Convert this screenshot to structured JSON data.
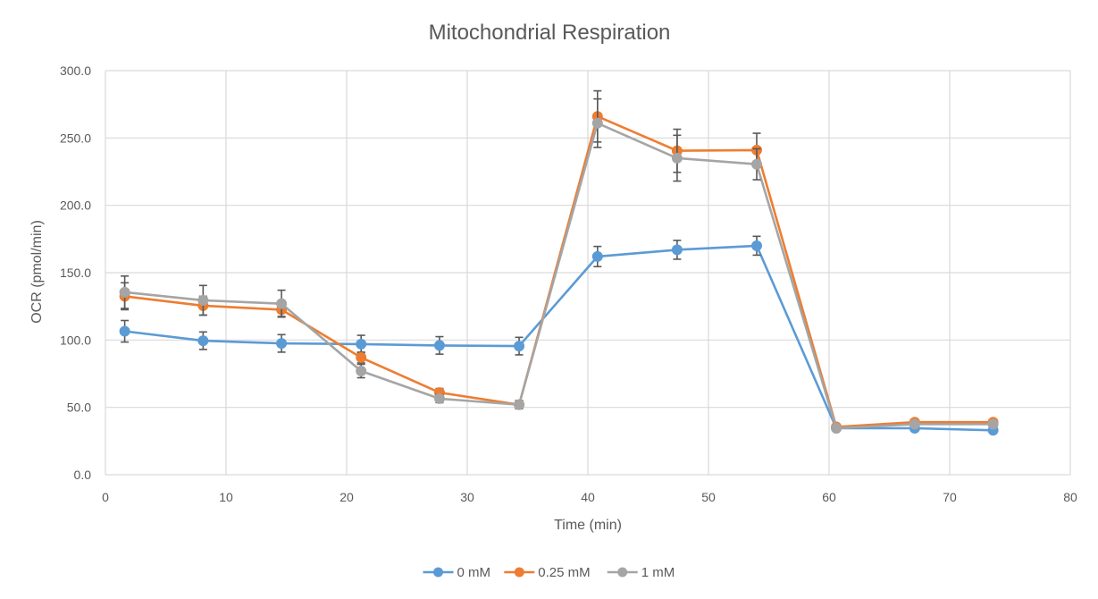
{
  "chart_data": {
    "type": "line",
    "title": "Mitochondrial Respiration",
    "xlabel": "Time (min)",
    "ylabel": "OCR (pmol/min)",
    "xlim": [
      0,
      80
    ],
    "ylim": [
      0,
      300
    ],
    "x_ticks": [
      "0",
      "10",
      "20",
      "30",
      "40",
      "50",
      "60",
      "70",
      "80"
    ],
    "y_ticks": [
      "0.0",
      "50.0",
      "100.0",
      "150.0",
      "200.0",
      "250.0",
      "300.0"
    ],
    "grid": true,
    "legend_position": "bottom",
    "x": [
      1.6,
      8.1,
      14.6,
      21.2,
      27.7,
      34.3,
      40.8,
      47.4,
      54.0,
      60.6,
      67.1,
      73.6
    ],
    "series": [
      {
        "name": "0 mM",
        "color": "#5B9BD5",
        "values": [
          106.5,
          99.5,
          97.5,
          97,
          96,
          95.5,
          162,
          167,
          170,
          34.5,
          34.5,
          33
        ],
        "errors": [
          8,
          6.5,
          6.5,
          6.5,
          6.5,
          6.5,
          7.5,
          7,
          7,
          1.5,
          1.5,
          1.5
        ]
      },
      {
        "name": "0.25 mM",
        "color": "#ED7D31",
        "values": [
          132.5,
          125.5,
          122.5,
          87,
          61,
          52,
          266,
          240.5,
          241,
          35.5,
          39,
          39
        ],
        "errors": [
          10,
          7,
          5,
          4,
          3,
          3,
          19,
          16,
          12.5,
          1.5,
          1.5,
          1.5
        ]
      },
      {
        "name": "1 mM",
        "color": "#A5A5A5",
        "values": [
          135.5,
          129.5,
          127,
          77,
          56.5,
          52,
          261,
          235,
          230.5,
          34.5,
          37.5,
          37.5
        ],
        "errors": [
          12,
          11,
          10,
          5,
          3,
          3,
          18,
          17,
          11.5,
          1.5,
          1.5,
          1.5
        ]
      }
    ]
  }
}
